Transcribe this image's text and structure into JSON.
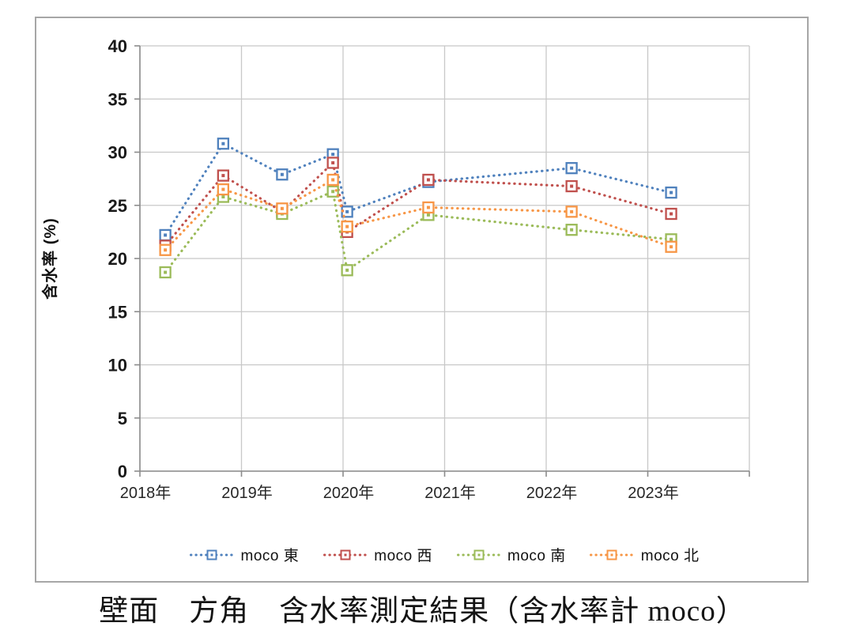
{
  "caption": "壁面　方角　含水率測定結果（含水率計 moco）",
  "colors": {
    "east": "#4F81BD",
    "west": "#C0504D",
    "south": "#9BBB59",
    "north": "#F79646",
    "gridline": "#c8c8c8",
    "axis": "#8c8c8c",
    "frame_border": "#a6a6a6"
  },
  "legend": {
    "items": [
      {
        "key": "east",
        "label": "moco 東"
      },
      {
        "key": "west",
        "label": "moco 西"
      },
      {
        "key": "south",
        "label": "moco 南"
      },
      {
        "key": "north",
        "label": "moco 北"
      }
    ]
  },
  "chart_data": {
    "type": "line",
    "title": "壁面　方角　含水率測定結果（含水率計 moco）",
    "xlabel": "",
    "ylabel": "含水率 (%)",
    "line_style": "dotted",
    "marker": "square-dot",
    "grid": true,
    "legend_position": "bottom",
    "ylim": [
      0,
      40
    ],
    "ytick_step": 5,
    "y_ticks": [
      40,
      35,
      30,
      25,
      20,
      15,
      10,
      5,
      0
    ],
    "x_range": [
      2018,
      2024
    ],
    "x_axis_labels": [
      "2018年",
      "2019年",
      "2020年",
      "2021年",
      "2022年",
      "2023年"
    ],
    "x_years": [
      2018.25,
      2018.82,
      2019.4,
      2019.9,
      2020.04,
      2020.84,
      2022.25,
      2023.23
    ],
    "series": [
      {
        "name": "moco 東",
        "key": "east",
        "values": [
          22.2,
          30.8,
          27.9,
          29.8,
          24.4,
          27.2,
          28.5,
          26.2
        ]
      },
      {
        "name": "moco 西",
        "key": "west",
        "values": [
          21.2,
          27.8,
          24.4,
          29.0,
          22.5,
          27.4,
          26.8,
          24.2
        ]
      },
      {
        "name": "moco 南",
        "key": "south",
        "values": [
          18.7,
          25.8,
          24.2,
          26.3,
          18.9,
          24.1,
          22.7,
          21.8
        ]
      },
      {
        "name": "moco 北",
        "key": "north",
        "values": [
          20.8,
          26.5,
          24.7,
          27.4,
          23.0,
          24.8,
          24.4,
          21.1
        ]
      }
    ]
  }
}
